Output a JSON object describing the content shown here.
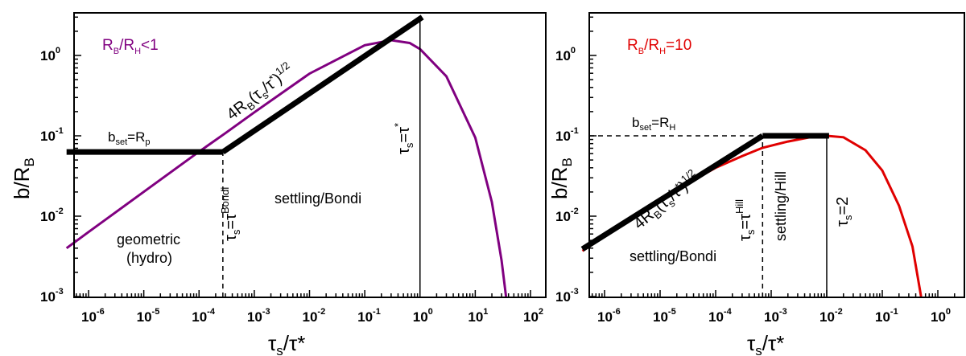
{
  "chart_data": [
    {
      "type": "line",
      "xscale": "log",
      "yscale": "log",
      "xlim": [
        4e-07,
        100
      ],
      "ylim": [
        0.001,
        3
      ],
      "xticks": [
        {
          "value": 1e-06,
          "label": "10",
          "exp": "-6"
        },
        {
          "value": 1e-05,
          "label": "10",
          "exp": "-5"
        },
        {
          "value": 0.0001,
          "label": "10",
          "exp": "-4"
        },
        {
          "value": 0.001,
          "label": "10",
          "exp": "-3"
        },
        {
          "value": 0.01,
          "label": "10",
          "exp": "-2"
        },
        {
          "value": 0.1,
          "label": "10",
          "exp": "-1"
        },
        {
          "value": 1,
          "label": "10",
          "exp": "0"
        },
        {
          "value": 10,
          "label": "10",
          "exp": "1"
        },
        {
          "value": 100,
          "label": "10",
          "exp": "2"
        }
      ],
      "yticks": [
        {
          "value": 0.001,
          "label": "10",
          "exp": "-3"
        },
        {
          "value": 0.01,
          "label": "10",
          "exp": "-2"
        },
        {
          "value": 0.1,
          "label": "10",
          "exp": "-1"
        },
        {
          "value": 1,
          "label": "10",
          "exp": "0"
        }
      ],
      "xlabel": {
        "main": "τ",
        "sub": "s",
        "rest": "/τ*"
      },
      "ylabel": {
        "main": "b/R",
        "sub": "B"
      },
      "legend": {
        "main": "R",
        "sub1": "B",
        "mid": "/R",
        "sub2": "H",
        "rest": "<1"
      },
      "legend_color": "#800080",
      "curve": {
        "color": "#800080",
        "points": [
          [
            4e-07,
            0.004
          ],
          [
            1e-06,
            0.00635
          ],
          [
            1e-05,
            0.0201
          ],
          [
            0.0001,
            0.0636
          ],
          [
            0.0003,
            0.108
          ],
          [
            0.001,
            0.196
          ],
          [
            0.01,
            0.594
          ],
          [
            0.1,
            1.34
          ],
          [
            0.3,
            1.55
          ],
          [
            0.65,
            1.43
          ],
          [
            1,
            1.2
          ],
          [
            3,
            0.55
          ],
          [
            10,
            0.095
          ],
          [
            20,
            0.015
          ],
          [
            30,
            0.0028
          ],
          [
            36,
            0.001
          ]
        ]
      },
      "asymptotes": [
        {
          "points": [
            [
              4e-07,
              0.063
            ],
            [
              0.00027,
              0.063
            ]
          ]
        },
        {
          "points": [
            [
              0.00027,
              0.063
            ],
            [
              1.1,
              3.0
            ]
          ]
        }
      ],
      "vlines": [
        {
          "x": 0.00027,
          "y_top": 0.063,
          "dashed": true
        },
        {
          "x": 1,
          "y_top": 3.0,
          "dashed": false
        }
      ],
      "annotations": {
        "bset": {
          "main": "b",
          "sub": "set",
          "rest": "=R",
          "sub2": "p"
        },
        "slope": {
          "main": "4R",
          "sub": "B",
          "rest": "(τ",
          "sub2": "s",
          "rest2": "/τ",
          "sup": "*",
          "rest3": ")",
          "sup2": "1/2"
        },
        "tau_bondi": {
          "main": "τ",
          "sub": "s",
          "rest": "=τ",
          "sup": "Bondi"
        },
        "tau_star": {
          "main": "τ",
          "sub": "s",
          "rest": "=τ",
          "sup": "*"
        },
        "regime_settling": "settling/Bondi",
        "regime_geometric_1": "geometric",
        "regime_geometric_2": "(hydro)"
      }
    },
    {
      "type": "line",
      "xscale": "log",
      "yscale": "log",
      "xlim": [
        4e-07,
        3
      ],
      "ylim": [
        0.001,
        3
      ],
      "xticks": [
        {
          "value": 1e-06,
          "label": "10",
          "exp": "-6"
        },
        {
          "value": 1e-05,
          "label": "10",
          "exp": "-5"
        },
        {
          "value": 0.0001,
          "label": "10",
          "exp": "-4"
        },
        {
          "value": 0.001,
          "label": "10",
          "exp": "-3"
        },
        {
          "value": 0.01,
          "label": "10",
          "exp": "-2"
        },
        {
          "value": 0.1,
          "label": "10",
          "exp": "-1"
        },
        {
          "value": 1,
          "label": "10",
          "exp": "0"
        }
      ],
      "yticks": [
        {
          "value": 0.001,
          "label": "10",
          "exp": "-3"
        },
        {
          "value": 0.01,
          "label": "10",
          "exp": "-2"
        },
        {
          "value": 0.1,
          "label": "10",
          "exp": "-1"
        },
        {
          "value": 1,
          "label": "10",
          "exp": "0"
        }
      ],
      "xlabel": {
        "main": "τ",
        "sub": "s",
        "rest": "/τ*"
      },
      "ylabel": {
        "main": "b/R",
        "sub": "B"
      },
      "legend": {
        "main": "R",
        "sub1": "B",
        "mid": "/R",
        "sub2": "H",
        "rest": "=10"
      },
      "legend_color": "#e00000",
      "curve": {
        "color": "#e00000",
        "points": [
          [
            4e-07,
            0.0037
          ],
          [
            1e-06,
            0.0056
          ],
          [
            1e-05,
            0.0166
          ],
          [
            0.0001,
            0.04
          ],
          [
            0.0003,
            0.056
          ],
          [
            0.0007,
            0.071
          ],
          [
            0.002,
            0.085
          ],
          [
            0.005,
            0.096
          ],
          [
            0.01,
            0.1
          ],
          [
            0.02,
            0.096
          ],
          [
            0.05,
            0.066
          ],
          [
            0.1,
            0.037
          ],
          [
            0.2,
            0.0135
          ],
          [
            0.35,
            0.0042
          ],
          [
            0.5,
            0.001
          ]
        ]
      },
      "asymptotes": [
        {
          "points": [
            [
              4e-07,
              0.0039
            ],
            [
              0.0007,
              0.1
            ]
          ]
        },
        {
          "points": [
            [
              0.0007,
              0.1
            ],
            [
              0.011,
              0.1
            ]
          ]
        }
      ],
      "dashed_hline": {
        "y": 0.1,
        "x_from": 4e-07,
        "x_to": 0.0007
      },
      "vlines": [
        {
          "x": 0.0007,
          "y_top": 0.1,
          "dashed": true
        },
        {
          "x": 0.01,
          "y_top": 0.1,
          "dashed": false
        }
      ],
      "annotations": {
        "bset": {
          "main": "b",
          "sub": "set",
          "rest": "=R",
          "sub2": "H"
        },
        "slope": {
          "main": "4R",
          "sub": "B",
          "rest": "(τ",
          "sub2": "s",
          "rest2": "/τ",
          "sup": "*",
          "rest3": ")",
          "sup2": "1/2"
        },
        "tau_hill": {
          "main": "τ",
          "sub": "s",
          "rest": "=τ",
          "sup": "Hill"
        },
        "tau_2": {
          "main": "τ",
          "sub": "s",
          "rest": "=2"
        },
        "regime_settling_bondi": "settling/Bondi",
        "regime_settling_hill": "settling/Hill"
      }
    }
  ]
}
